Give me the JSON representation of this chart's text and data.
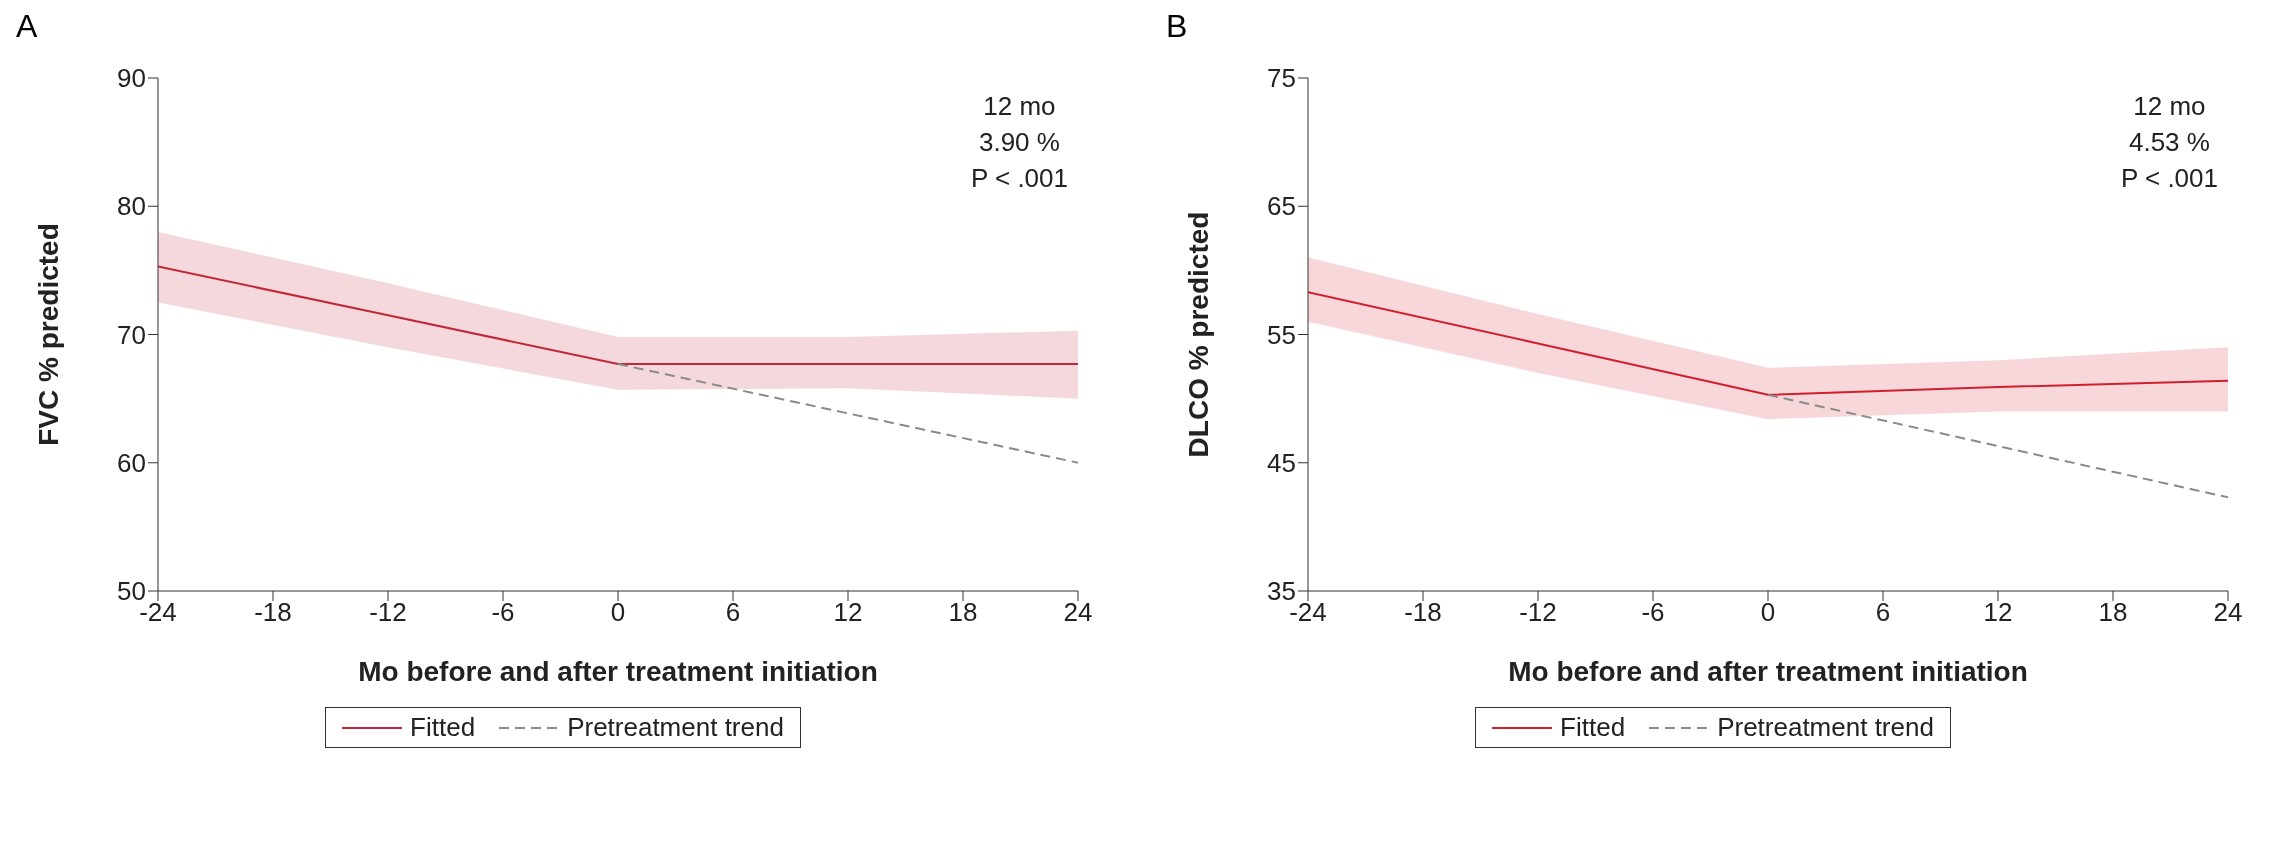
{
  "chart_data": [
    {
      "type": "line",
      "title": "A",
      "xlabel": "Mo before and after treatment initiation",
      "ylabel": "FVC % predicted",
      "xlim": [
        -24,
        24
      ],
      "xticks": [
        -24,
        -18,
        -12,
        -6,
        0,
        6,
        12,
        18,
        24
      ],
      "ylim": [
        50,
        90
      ],
      "yticks": [
        50,
        60,
        70,
        80,
        90
      ],
      "legend": "bottom",
      "annotations": [
        "12 mo",
        "3.90 %",
        "P < .001"
      ],
      "series": [
        {
          "name": "Fitted",
          "color": "#c0283a",
          "x": [
            -24,
            -12,
            0,
            12,
            24
          ],
          "values": [
            75.3,
            71.5,
            67.7,
            67.7,
            67.7
          ],
          "lower": [
            72.5,
            69,
            65.7,
            65.8,
            65
          ],
          "upper": [
            78,
            74,
            69.8,
            69.8,
            70.3
          ]
        },
        {
          "name": "Pretreatment trend",
          "color": "#8a8a8a",
          "line_style": "dashed",
          "x": [
            0,
            24
          ],
          "values": [
            67.7,
            60
          ]
        }
      ]
    },
    {
      "type": "line",
      "title": "B",
      "xlabel": "Mo before and after treatment initiation",
      "ylabel": "DLCO % predicted",
      "xlim": [
        -24,
        24
      ],
      "xticks": [
        -24,
        -18,
        -12,
        -6,
        0,
        6,
        12,
        18,
        24
      ],
      "ylim": [
        35,
        75
      ],
      "yticks": [
        35,
        45,
        55,
        65,
        75
      ],
      "legend": "bottom",
      "annotations": [
        "12 mo",
        "4.53 %",
        "P < .001"
      ],
      "series": [
        {
          "name": "Fitted",
          "color": "#d0202e",
          "x": [
            -24,
            -12,
            0,
            12,
            24
          ],
          "values": [
            58.3,
            54.3,
            50.3,
            50.9,
            51.4
          ],
          "lower": [
            56,
            52,
            48.4,
            49,
            49
          ],
          "upper": [
            61,
            56.6,
            52.4,
            53,
            54
          ]
        },
        {
          "name": "Pretreatment trend",
          "color": "#8a8a8a",
          "line_style": "dashed",
          "x": [
            0,
            24
          ],
          "values": [
            50.3,
            42.3
          ]
        }
      ]
    }
  ]
}
